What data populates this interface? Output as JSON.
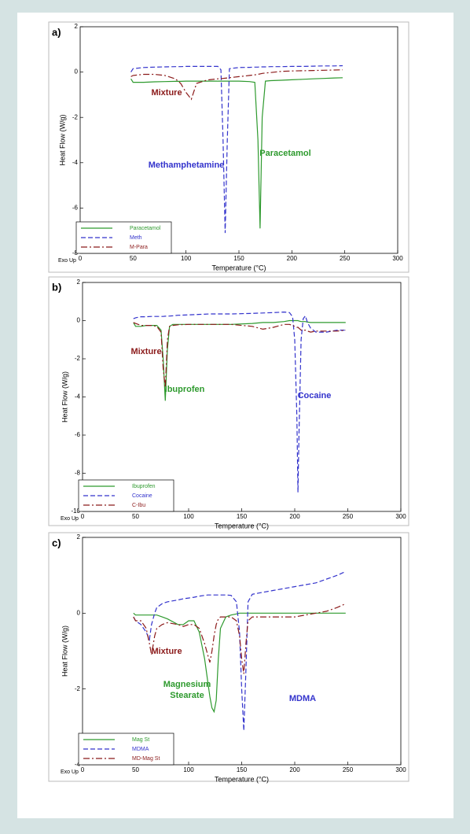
{
  "chart_data": [
    {
      "type": "line",
      "panel_label": "a)",
      "xlabel": "Temperature (°C)",
      "ylabel": "Heat Flow (W/g)",
      "corner_note": "Exo Up",
      "xlim": [
        0,
        300
      ],
      "xticks": [
        0,
        50,
        100,
        150,
        200,
        250,
        300
      ],
      "ylim": [
        -8,
        2
      ],
      "yticks": [
        2,
        0,
        -2,
        -4,
        -6,
        -8
      ],
      "legend": "lower left",
      "x": [
        48,
        50,
        60,
        70,
        80,
        90,
        95,
        100,
        105,
        110,
        120,
        130,
        133,
        135,
        137,
        139,
        141,
        150,
        160,
        165,
        168,
        170,
        172,
        175,
        180,
        190,
        200,
        210,
        220,
        230,
        240,
        248
      ],
      "series": [
        {
          "name": "Paracetamol",
          "color": "#2e9a2e",
          "dash": "solid",
          "values": [
            -0.3,
            -0.45,
            -0.45,
            -0.43,
            -0.42,
            -0.41,
            -0.41,
            -0.4,
            -0.4,
            -0.4,
            -0.4,
            -0.4,
            -0.4,
            -0.4,
            -0.4,
            -0.4,
            -0.4,
            -0.4,
            -0.42,
            -0.45,
            -3,
            -6.9,
            -2,
            -0.4,
            -0.38,
            -0.36,
            -0.34,
            -0.32,
            -0.3,
            -0.28,
            -0.26,
            -0.25
          ]
        },
        {
          "name": "Meth",
          "color": "#3333cc",
          "dash": "dashed",
          "values": [
            0,
            0.15,
            0.2,
            0.22,
            0.23,
            0.24,
            0.24,
            0.25,
            0.25,
            0.25,
            0.25,
            0.25,
            0.1,
            -3,
            -7.1,
            -3,
            0.15,
            0.2,
            0.21,
            0.22,
            0.22,
            0.23,
            0.23,
            0.23,
            0.24,
            0.24,
            0.25,
            0.25,
            0.26,
            0.27,
            0.27,
            0.28
          ]
        },
        {
          "name": "M-Para",
          "color": "#8b1a1a",
          "dash": "dashdot",
          "values": [
            -0.2,
            -0.15,
            -0.1,
            -0.1,
            -0.15,
            -0.3,
            -0.5,
            -0.9,
            -1.2,
            -0.5,
            -0.35,
            -0.3,
            -0.29,
            -0.28,
            -0.27,
            -0.26,
            -0.25,
            -0.2,
            -0.15,
            -0.12,
            -0.1,
            -0.08,
            -0.06,
            -0.04,
            -0.02,
            0.03,
            0.05,
            0.06,
            0.07,
            0.08,
            0.09,
            0.1
          ]
        }
      ],
      "annotations": [
        {
          "lines": [
            "Mixture"
          ],
          "color": "#8b1a1a"
        },
        {
          "lines": [
            "Methamphetamine"
          ],
          "color": "#3333cc"
        },
        {
          "lines": [
            "Paracetamol"
          ],
          "color": "#2e9a2e"
        }
      ]
    },
    {
      "type": "line",
      "panel_label": "b)",
      "xlabel": "Temperature (°C)",
      "ylabel": "Heat Flow (W/g)",
      "corner_note": "Exo Up",
      "xlim": [
        0,
        300
      ],
      "xticks": [
        0,
        50,
        100,
        150,
        200,
        250,
        300
      ],
      "ylim": [
        -10,
        2
      ],
      "yticks": [
        2,
        0,
        -2,
        -4,
        -6,
        -8,
        -10
      ],
      "legend": "lower left",
      "x": [
        48,
        50,
        55,
        60,
        65,
        70,
        74,
        76,
        78,
        80,
        82,
        85,
        90,
        100,
        120,
        140,
        160,
        170,
        180,
        190,
        195,
        198,
        200,
        202,
        203,
        204,
        206,
        208,
        210,
        212,
        215,
        220,
        230,
        240,
        248
      ],
      "series": [
        {
          "name": "Ibuprofen",
          "color": "#2e9a2e",
          "dash": "solid",
          "values": [
            -0.1,
            -0.3,
            -0.3,
            -0.25,
            -0.25,
            -0.25,
            -0.5,
            -2,
            -4.2,
            -1.5,
            -0.3,
            -0.2,
            -0.2,
            -0.2,
            -0.2,
            -0.2,
            -0.15,
            -0.1,
            -0.1,
            -0.05,
            0,
            0,
            0,
            0,
            0,
            -0.02,
            -0.05,
            -0.05,
            -0.05,
            -0.08,
            -0.1,
            -0.1,
            -0.1,
            -0.1,
            -0.1
          ]
        },
        {
          "name": "Cocaine",
          "color": "#3333cc",
          "dash": "dashed",
          "values": [
            0.1,
            0.15,
            0.2,
            0.2,
            0.22,
            0.22,
            0.22,
            0.22,
            0.23,
            0.23,
            0.24,
            0.25,
            0.28,
            0.3,
            0.35,
            0.35,
            0.38,
            0.4,
            0.42,
            0.45,
            0.42,
            0.2,
            -1,
            -5,
            -9,
            -6,
            -1,
            0.1,
            0.25,
            -0.1,
            -0.4,
            -0.6,
            -0.6,
            -0.5,
            -0.5
          ]
        },
        {
          "name": "C-Ibu",
          "color": "#8b1a1a",
          "dash": "dashdot",
          "values": [
            -0.1,
            -0.15,
            -0.25,
            -0.25,
            -0.25,
            -0.3,
            -0.6,
            -2.5,
            -3.5,
            -1,
            -0.3,
            -0.25,
            -0.22,
            -0.2,
            -0.2,
            -0.2,
            -0.3,
            -0.45,
            -0.35,
            -0.2,
            -0.2,
            -0.25,
            -0.3,
            -0.35,
            -0.35,
            -0.4,
            -0.5,
            -0.5,
            -0.5,
            -0.55,
            -0.6,
            -0.55,
            -0.55,
            -0.55,
            -0.5
          ]
        }
      ],
      "annotations": [
        {
          "lines": [
            "Mixture"
          ],
          "color": "#8b1a1a"
        },
        {
          "lines": [
            "Ibuprofen"
          ],
          "color": "#2e9a2e"
        },
        {
          "lines": [
            "Cocaine"
          ],
          "color": "#3333cc"
        }
      ]
    },
    {
      "type": "line",
      "panel_label": "c)",
      "xlabel": "Temperature (°C)",
      "ylabel": "Heat Flow (W/g)",
      "corner_note": "Exo Up",
      "xlim": [
        0,
        300
      ],
      "xticks": [
        0,
        50,
        100,
        150,
        200,
        250,
        300
      ],
      "ylim": [
        -4,
        2
      ],
      "yticks": [
        2,
        0,
        -2,
        -4
      ],
      "legend": "lower left",
      "x": [
        48,
        50,
        55,
        60,
        63,
        65,
        68,
        70,
        75,
        80,
        90,
        95,
        100,
        105,
        110,
        115,
        118,
        120,
        122,
        124,
        126,
        128,
        130,
        135,
        140,
        145,
        148,
        150,
        152,
        154,
        156,
        160,
        170,
        180,
        190,
        200,
        210,
        220,
        230,
        240,
        248
      ],
      "series": [
        {
          "name": "Mag St",
          "color": "#2e9a2e",
          "dash": "solid",
          "values": [
            0,
            -0.05,
            -0.05,
            -0.05,
            -0.05,
            -0.05,
            -0.05,
            -0.05,
            -0.1,
            -0.15,
            -0.3,
            -0.3,
            -0.2,
            -0.2,
            -0.5,
            -1.2,
            -1.8,
            -2.2,
            -2.5,
            -2.6,
            -2.3,
            -1.2,
            -0.4,
            -0.1,
            -0.05,
            -0.02,
            0,
            0,
            0,
            0,
            0,
            0,
            0,
            0,
            0,
            0,
            0,
            0,
            0,
            0,
            0
          ]
        },
        {
          "name": "MDMA",
          "color": "#3333cc",
          "dash": "dashed",
          "values": [
            -0.1,
            -0.2,
            -0.3,
            -0.5,
            -0.7,
            -0.3,
            0,
            0.15,
            0.25,
            0.3,
            0.35,
            0.38,
            0.4,
            0.42,
            0.45,
            0.47,
            0.48,
            0.48,
            0.48,
            0.48,
            0.48,
            0.48,
            0.48,
            0.48,
            0.47,
            0.3,
            -0.5,
            -2,
            -3.1,
            -1.5,
            0.3,
            0.5,
            0.55,
            0.6,
            0.65,
            0.7,
            0.75,
            0.8,
            0.9,
            1.0,
            1.1
          ]
        },
        {
          "name": "MD-Mag St",
          "color": "#8b1a1a",
          "dash": "dashdot",
          "values": [
            -0.1,
            -0.2,
            -0.2,
            -0.4,
            -0.8,
            -1.1,
            -0.6,
            -0.4,
            -0.3,
            -0.25,
            -0.3,
            -0.35,
            -0.3,
            -0.3,
            -0.4,
            -0.8,
            -1.1,
            -1.3,
            -1,
            -0.6,
            -0.3,
            -0.15,
            -0.1,
            -0.1,
            -0.1,
            -0.2,
            -0.6,
            -1.2,
            -1.6,
            -0.8,
            -0.2,
            -0.1,
            -0.1,
            -0.1,
            -0.1,
            -0.1,
            -0.05,
            0,
            0.05,
            0.15,
            0.25
          ]
        }
      ],
      "annotations": [
        {
          "lines": [
            "Mixture"
          ],
          "color": "#8b1a1a"
        },
        {
          "lines": [
            "Magnesium",
            "Stearate"
          ],
          "color": "#2e9a2e"
        },
        {
          "lines": [
            "MDMA"
          ],
          "color": "#3333cc"
        }
      ]
    }
  ]
}
